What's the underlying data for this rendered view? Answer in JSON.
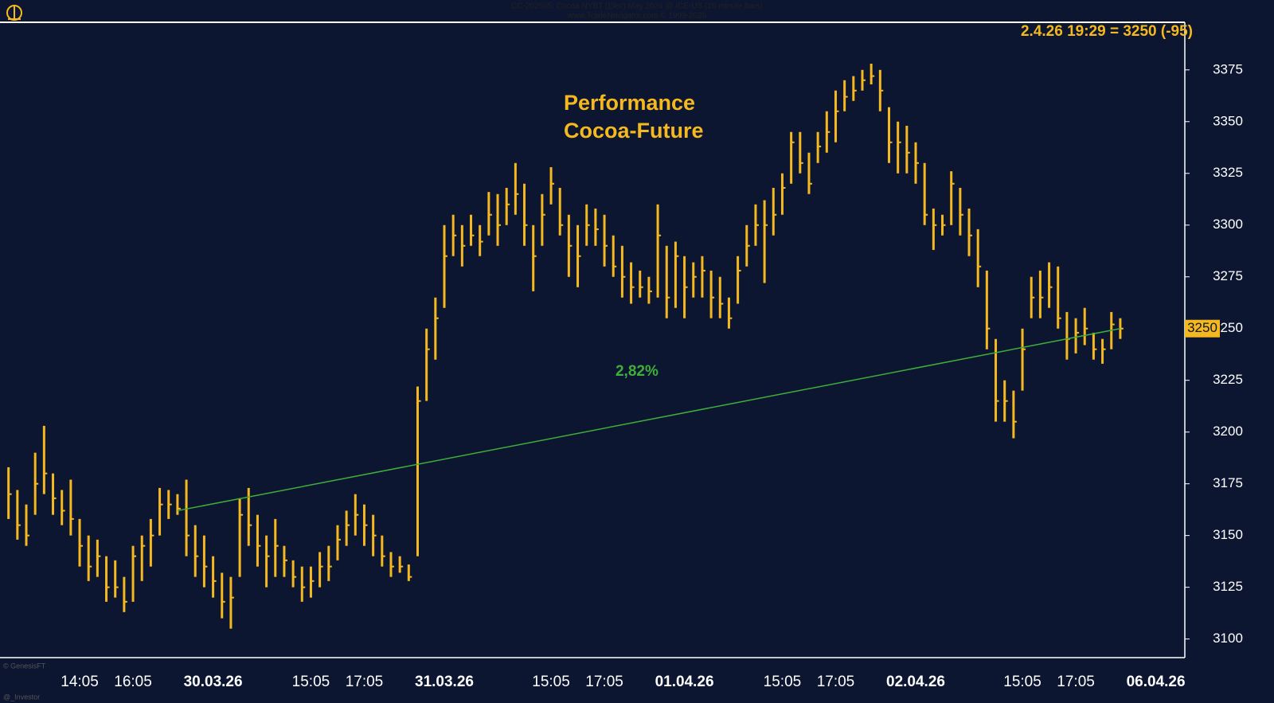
{
  "chart_data": {
    "type": "hlc",
    "header": [
      "CC-202605: Cocoa NYBT (Elec) May 2026 @ ICE-US (10 minute bars)",
      "www.TradeNavigator.com © 1999-2026"
    ],
    "title": "Performance",
    "subtitle": "Cocoa-Future",
    "info": "2.4.26 19:29 = 3250 (-95)",
    "footer": [
      "© GenesisFT",
      "@_Investor"
    ],
    "color": "#f5b81f",
    "categories": [
      null,
      null,
      null,
      null,
      null,
      null,
      null,
      null,
      null,
      "14:05",
      null,
      null,
      null,
      null,
      null,
      "16:05",
      null,
      null,
      null,
      null,
      null,
      null,
      null,
      null,
      "30.03.26",
      null,
      null,
      null,
      null,
      null,
      null,
      null,
      null,
      null,
      null,
      "15:05",
      null,
      null,
      null,
      null,
      null,
      "17:05",
      null,
      null,
      null,
      null,
      null,
      null,
      null,
      null,
      "31.03.26",
      null,
      null,
      null,
      null,
      null,
      null,
      null,
      null,
      null,
      null,
      null,
      "15:05",
      null,
      null,
      null,
      null,
      null,
      "17:05",
      null,
      null,
      null,
      null,
      null,
      null,
      null,
      null,
      "01.04.26",
      null,
      null,
      null,
      null,
      null,
      null,
      null,
      null,
      null,
      null,
      "15:05",
      null,
      null,
      null,
      null,
      null,
      "17:05",
      null,
      null,
      null,
      null,
      null,
      null,
      null,
      null,
      "02.04.26",
      null,
      null,
      null,
      null,
      null,
      null,
      null,
      null,
      null,
      null,
      null,
      "15:05",
      null,
      null,
      null,
      null,
      null,
      "17:05",
      null,
      null,
      null,
      null,
      null,
      null,
      null,
      null,
      "06.04.26"
    ],
    "high": [
      null,
      3183,
      3172,
      3165,
      3190,
      3203,
      3180,
      3172,
      3177,
      3158,
      3150,
      3148,
      3140,
      3138,
      3130,
      3145,
      3150,
      3158,
      3173,
      3172,
      3170,
      3177,
      3155,
      3150,
      3140,
      3132,
      3130,
      3168,
      3173,
      3160,
      3150,
      3158,
      3145,
      3138,
      3135,
      3135,
      3142,
      3145,
      3155,
      3162,
      3170,
      3165,
      3160,
      3150,
      3142,
      3140,
      3136,
      3222,
      3250,
      3265,
      3300,
      3305,
      3300,
      3305,
      3300,
      3316,
      3315,
      3318,
      3330,
      3320,
      3300,
      3315,
      3328,
      3318,
      3305,
      3300,
      3310,
      3308,
      3305,
      3295,
      3290,
      3282,
      3278,
      3275,
      3310,
      3290,
      3292,
      3285,
      3282,
      3285,
      3278,
      3275,
      3265,
      3285,
      3300,
      3310,
      3312,
      3318,
      3325,
      3345,
      3345,
      3335,
      3345,
      3355,
      3365,
      3370,
      3372,
      3375,
      3378,
      3375,
      3357,
      3350,
      3348,
      3340,
      3330,
      3308,
      3305,
      3326,
      3318,
      3308,
      3298,
      3278,
      3245,
      3225,
      3220,
      3250,
      3275,
      3278,
      3282,
      3280,
      3258,
      3255,
      3260,
      3248,
      3245,
      3258,
      3255,
      null,
      null,
      null,
      null
    ],
    "low": [
      null,
      3158,
      3148,
      3145,
      3160,
      3170,
      3160,
      3155,
      3150,
      3135,
      3128,
      3130,
      3118,
      3120,
      3113,
      3118,
      3128,
      3135,
      3150,
      3158,
      3160,
      3140,
      3130,
      3125,
      3120,
      3110,
      3105,
      3130,
      3145,
      3135,
      3125,
      3130,
      3130,
      3125,
      3118,
      3120,
      3125,
      3128,
      3138,
      3145,
      3150,
      3145,
      3140,
      3135,
      3130,
      3132,
      3128,
      3140,
      3215,
      3235,
      3260,
      3285,
      3280,
      3290,
      3285,
      3295,
      3290,
      3300,
      3305,
      3290,
      3268,
      3290,
      3310,
      3295,
      3275,
      3270,
      3290,
      3290,
      3280,
      3275,
      3265,
      3262,
      3265,
      3262,
      3265,
      3255,
      3260,
      3255,
      3265,
      3265,
      3255,
      3255,
      3250,
      3262,
      3280,
      3290,
      3272,
      3295,
      3305,
      3320,
      3325,
      3315,
      3330,
      3335,
      3340,
      3355,
      3360,
      3365,
      3368,
      3355,
      3330,
      3325,
      3325,
      3320,
      3300,
      3288,
      3295,
      3300,
      3295,
      3285,
      3270,
      3240,
      3205,
      3205,
      3197,
      3220,
      3255,
      3255,
      3260,
      3250,
      3235,
      3238,
      3242,
      3235,
      3233,
      3240,
      3245,
      null,
      null,
      null,
      null
    ],
    "close": [
      null,
      3170,
      3155,
      3150,
      3175,
      3180,
      3168,
      3162,
      3158,
      3145,
      3135,
      3140,
      3125,
      3125,
      3118,
      3140,
      3145,
      3150,
      3165,
      3165,
      3163,
      3150,
      3140,
      3135,
      3128,
      3118,
      3120,
      3160,
      3155,
      3145,
      3140,
      3145,
      3138,
      3130,
      3125,
      3128,
      3135,
      3135,
      3148,
      3155,
      3160,
      3155,
      3150,
      3140,
      3135,
      3135,
      3130,
      3215,
      3240,
      3255,
      3285,
      3295,
      3290,
      3295,
      3292,
      3305,
      3300,
      3310,
      3315,
      3300,
      3285,
      3305,
      3320,
      3300,
      3290,
      3285,
      3300,
      3298,
      3290,
      3280,
      3275,
      3270,
      3270,
      3268,
      3295,
      3265,
      3285,
      3270,
      3275,
      3278,
      3265,
      3262,
      3255,
      3278,
      3290,
      3300,
      3300,
      3305,
      3318,
      3340,
      3330,
      3320,
      3338,
      3345,
      3355,
      3362,
      3365,
      3370,
      3372,
      3365,
      3340,
      3340,
      3335,
      3330,
      3305,
      3300,
      3300,
      3320,
      3305,
      3295,
      3280,
      3250,
      3215,
      3215,
      3205,
      3240,
      3265,
      3265,
      3270,
      3255,
      3245,
      3248,
      3250,
      3240,
      3240,
      3252,
      3250,
      null,
      null,
      null,
      null
    ],
    "trendline": {
      "from": 20,
      "to": 126,
      "values": [
        3162,
        3250
      ],
      "label": "2,82%",
      "color": "#3fae3a"
    },
    "ylim": [
      3091,
      3398
    ],
    "yticks": [
      3100,
      3125,
      3150,
      3175,
      3200,
      3225,
      3250,
      3275,
      3300,
      3325,
      3350,
      3375
    ]
  }
}
